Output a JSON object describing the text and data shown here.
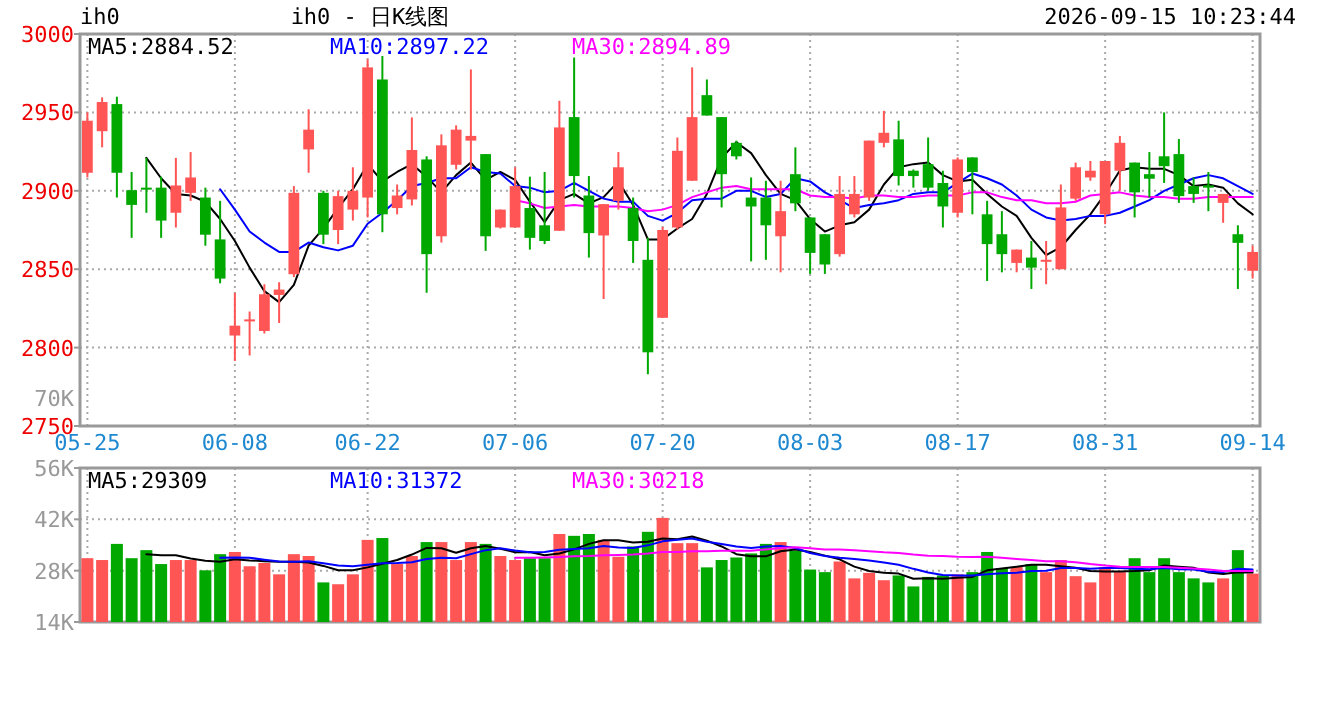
{
  "chart_data": [
    {
      "type": "candlestick",
      "title": "ih0 - 日K线图",
      "annotations": [
        "ih0",
        "2026-09-15 10:23:44",
        "70K"
      ],
      "categories": [
        "05-25",
        null,
        null,
        null,
        null,
        null,
        null,
        null,
        null,
        null,
        "06-08",
        null,
        null,
        null,
        null,
        null,
        null,
        null,
        null,
        "06-22",
        null,
        null,
        null,
        null,
        null,
        null,
        null,
        null,
        null,
        "07-06",
        null,
        null,
        null,
        null,
        null,
        null,
        null,
        null,
        null,
        "07-20",
        null,
        null,
        null,
        null,
        null,
        null,
        null,
        null,
        null,
        "08-03",
        null,
        null,
        null,
        null,
        null,
        null,
        null,
        null,
        null,
        "08-17",
        null,
        null,
        null,
        null,
        null,
        null,
        null,
        null,
        null,
        "08-31",
        null,
        null,
        null,
        null,
        null,
        null,
        null,
        null,
        null,
        "09-14"
      ],
      "ohlc": [
        [
          2911.5,
          2950,
          2908.5,
          2944.7
        ],
        [
          2938,
          2959.6,
          2927.7,
          2956.6
        ],
        [
          2955.3,
          2960,
          2895.7,
          2911.5
        ],
        [
          2900.4,
          2912,
          2870,
          2891
        ],
        [
          2902,
          2921,
          2886,
          2901
        ],
        [
          2902,
          2909,
          2870,
          2881
        ],
        [
          2886,
          2921,
          2876.6,
          2903.4
        ],
        [
          2898.7,
          2924.7,
          2893.6,
          2908.5
        ],
        [
          2895.7,
          2902,
          2865,
          2872
        ],
        [
          2869,
          2893.6,
          2841,
          2844
        ],
        [
          2807.7,
          2835,
          2791.5,
          2814
        ],
        [
          2817,
          2823,
          2795,
          2818
        ],
        [
          2810.6,
          2840.4,
          2809,
          2834
        ],
        [
          2833.6,
          2841.7,
          2815.7,
          2837
        ],
        [
          2846.8,
          2903,
          2845,
          2898.7
        ],
        [
          2926.4,
          2952,
          2911.5,
          2939
        ],
        [
          2898.7,
          2900,
          2866,
          2872
        ],
        [
          2875,
          2900,
          2866,
          2896.6
        ],
        [
          2888,
          2915,
          2881,
          2900
        ],
        [
          2895.7,
          2983.8,
          2883,
          2978.7
        ],
        [
          2971,
          2986,
          2873.6,
          2885
        ],
        [
          2889,
          2904,
          2885,
          2897
        ],
        [
          2894.5,
          2946.8,
          2890.6,
          2926
        ],
        [
          2920,
          2922,
          2835,
          2859.6
        ],
        [
          2871,
          2936,
          2867,
          2929
        ],
        [
          2916.6,
          2941.7,
          2913.6,
          2939
        ],
        [
          2932,
          2977.4,
          2913.6,
          2935
        ],
        [
          2923.4,
          2923.4,
          2861.7,
          2871
        ],
        [
          2876.6,
          2888.1,
          2876,
          2888
        ],
        [
          2876.6,
          2915,
          2876.6,
          2903
        ],
        [
          2889,
          2909,
          2862.5,
          2870
        ],
        [
          2878,
          2912,
          2866,
          2868
        ],
        [
          2874.5,
          2957.4,
          2874.5,
          2940.4
        ],
        [
          2947,
          2985,
          2895.7,
          2909.4
        ],
        [
          2897,
          2909.4,
          2857.4,
          2873
        ],
        [
          2871.5,
          2891.5,
          2831,
          2891.5
        ],
        [
          2893.6,
          2924.7,
          2888,
          2915
        ],
        [
          2889,
          2895.7,
          2854,
          2868
        ],
        [
          2856,
          2870,
          2783,
          2797
        ],
        [
          2819,
          2877,
          2819,
          2875
        ],
        [
          2876.6,
          2934,
          2875.3,
          2925.5
        ],
        [
          2906.4,
          2978.7,
          2906.4,
          2947
        ],
        [
          2961,
          2971,
          2948,
          2948
        ],
        [
          2947,
          2947,
          2889.4,
          2910.6
        ],
        [
          2930.6,
          2932,
          2920,
          2922
        ],
        [
          2895.7,
          2908.5,
          2855,
          2890
        ],
        [
          2895.7,
          2906.4,
          2856,
          2878
        ],
        [
          2871,
          2906.4,
          2848,
          2887
        ],
        [
          2910.6,
          2927.7,
          2887,
          2892
        ],
        [
          2883,
          2883,
          2847,
          2860.4
        ],
        [
          2872.3,
          2872.3,
          2847,
          2853
        ],
        [
          2859.6,
          2909.4,
          2858,
          2898
        ],
        [
          2885,
          2909.4,
          2883,
          2898
        ],
        [
          2895.7,
          2932,
          2893.6,
          2932
        ],
        [
          2930.6,
          2951,
          2927.7,
          2937
        ],
        [
          2932.8,
          2944.7,
          2903.4,
          2909.4
        ],
        [
          2912.8,
          2913.6,
          2902,
          2909.4
        ],
        [
          2917,
          2934,
          2900,
          2902
        ],
        [
          2905,
          2912.8,
          2876.6,
          2890
        ],
        [
          2886,
          2921.3,
          2883,
          2920
        ],
        [
          2921.3,
          2921.3,
          2885,
          2912
        ],
        [
          2885,
          2893.6,
          2842.5,
          2866
        ],
        [
          2872.3,
          2887,
          2848,
          2859.6
        ],
        [
          2854,
          2862.5,
          2848,
          2862.5
        ],
        [
          2857.4,
          2868,
          2837.4,
          2851
        ],
        [
          2855.3,
          2868,
          2840.4,
          2856
        ],
        [
          2850,
          2904,
          2850,
          2889.4
        ],
        [
          2895,
          2918,
          2893.6,
          2915
        ],
        [
          2908.5,
          2919,
          2906.4,
          2912.8
        ],
        [
          2885,
          2919,
          2878.7,
          2919
        ],
        [
          2912.8,
          2935,
          2900,
          2930.6
        ],
        [
          2918,
          2918,
          2883,
          2899
        ],
        [
          2910.6,
          2924.7,
          2895.7,
          2907.7
        ],
        [
          2922,
          2950,
          2905,
          2915.7
        ],
        [
          2923.4,
          2933,
          2892.3,
          2896.6
        ],
        [
          2903,
          2908.5,
          2892.3,
          2898
        ],
        [
          2903.4,
          2912,
          2887,
          2902
        ],
        [
          2892.3,
          2898,
          2879.6,
          2898
        ],
        [
          2872.3,
          2878,
          2837.4,
          2866.8
        ],
        [
          2849,
          2865,
          2844,
          2861
        ]
      ],
      "colors": [
        "#ff5555",
        "#ff5555",
        "#00a800",
        "#00a800",
        "#00a800",
        "#00a800",
        "#ff5555",
        "#ff5555",
        "#00a800",
        "#00a800",
        "#ff5555",
        "#ff5555",
        "#ff5555",
        "#ff5555",
        "#ff5555",
        "#ff5555",
        "#00a800",
        "#ff5555",
        "#ff5555",
        "#ff5555",
        "#00a800",
        "#ff5555",
        "#ff5555",
        "#00a800",
        "#ff5555",
        "#ff5555",
        "#ff5555",
        "#00a800",
        "#ff5555",
        "#ff5555",
        "#00a800",
        "#00a800",
        "#ff5555",
        "#00a800",
        "#00a800",
        "#ff5555",
        "#ff5555",
        "#00a800",
        "#00a800",
        "#ff5555",
        "#ff5555",
        "#ff5555",
        "#00a800",
        "#00a800",
        "#00a800",
        "#00a800",
        "#00a800",
        "#ff5555",
        "#00a800",
        "#00a800",
        "#00a800",
        "#ff5555",
        "#ff5555",
        "#ff5555",
        "#ff5555",
        "#00a800",
        "#00a800",
        "#00a800",
        "#00a800",
        "#ff5555",
        "#00a800",
        "#00a800",
        "#00a800",
        "#ff5555",
        "#00a800",
        "#ff5555",
        "#ff5555",
        "#ff5555",
        "#ff5555",
        "#ff5555",
        "#ff5555",
        "#00a800",
        "#00a800",
        "#00a800",
        "#00a800",
        "#00a800",
        "#00a800",
        "#ff5555",
        "#00a800",
        "#ff5555"
      ],
      "series": [
        {
          "name": "MA5:2884.52",
          "type": "line",
          "color": "#000000",
          "values": [
            null,
            null,
            null,
            null,
            2921,
            2908,
            2898,
            2897,
            2893,
            2882,
            2868,
            2851,
            2836,
            2829,
            2840,
            2865,
            2876,
            2889,
            2901,
            2917,
            2906,
            2912,
            2917,
            2909,
            2899,
            2910,
            2918,
            2907,
            2912,
            2907,
            2893,
            2880,
            2894,
            2898,
            2892,
            2896,
            2906,
            2891,
            2869,
            2869,
            2876,
            2882,
            2898,
            2921,
            2931,
            2924,
            2910,
            2898,
            2894,
            2882,
            2874,
            2878,
            2880,
            2888,
            2904,
            2915,
            2917,
            2918,
            2910,
            2906,
            2907,
            2898,
            2890,
            2884,
            2870,
            2859,
            2864,
            2875,
            2885,
            2898,
            2913,
            2915,
            2914,
            2914,
            2910,
            2903,
            2904,
            2902,
            2892,
            2885
          ]
        },
        {
          "name": "MA10:2897.22",
          "type": "line",
          "color": "#0000ff",
          "values": [
            null,
            null,
            null,
            null,
            null,
            null,
            null,
            null,
            null,
            2901,
            2888,
            2874,
            2867,
            2861,
            2861,
            2867,
            2864,
            2862,
            2865,
            2879,
            2886,
            2894,
            2903,
            2905,
            2908,
            2908,
            2915,
            2912,
            2911,
            2903,
            2902,
            2899,
            2900,
            2905,
            2900,
            2895,
            2893,
            2893,
            2884,
            2881,
            2886,
            2894,
            2895,
            2895,
            2900,
            2900,
            2896,
            2898,
            2908,
            2906,
            2899,
            2894,
            2889,
            2891,
            2892,
            2894,
            2898,
            2899,
            2899,
            2905,
            2911,
            2908,
            2904,
            2897,
            2888,
            2883,
            2881,
            2882,
            2884,
            2884,
            2886,
            2890,
            2894,
            2900,
            2904,
            2908,
            2910,
            2908,
            2903,
            2898
          ]
        },
        {
          "name": "MA30:2894.89",
          "type": "line",
          "color": "#ff00ff",
          "values": [
            null,
            null,
            null,
            null,
            null,
            null,
            null,
            null,
            null,
            null,
            null,
            null,
            null,
            null,
            null,
            null,
            null,
            null,
            null,
            null,
            null,
            null,
            null,
            null,
            null,
            null,
            null,
            null,
            null,
            2894,
            2892,
            2889,
            2890,
            2891,
            2890,
            2890,
            2890,
            2889,
            2887,
            2888,
            2891,
            2896,
            2899,
            2902,
            2903,
            2901,
            2901,
            2901,
            2901,
            2897,
            2896,
            2896,
            2895,
            2897,
            2897,
            2896,
            2896,
            2897,
            2897,
            2897,
            2899,
            2899,
            2896,
            2894,
            2894,
            2892,
            2892,
            2893,
            2897,
            2898,
            2899,
            2897,
            2896,
            2896,
            2895,
            2895,
            2896,
            2896,
            2896,
            2896
          ]
        }
      ],
      "ylim": [
        2750,
        3000
      ],
      "yticks": [
        2750,
        2800,
        2850,
        2900,
        2950,
        3000
      ],
      "grid": true,
      "legend": "top left"
    },
    {
      "type": "bar",
      "categories": [
        null,
        null,
        null,
        null,
        null,
        null,
        null,
        null,
        null,
        null,
        null,
        null,
        null,
        null,
        null,
        null,
        null,
        null,
        null,
        null,
        null,
        null,
        null,
        null,
        null,
        null,
        null,
        null,
        null,
        null,
        null,
        null,
        null,
        null,
        null,
        null,
        null,
        null,
        null,
        null,
        null,
        null,
        null,
        null,
        null,
        null,
        null,
        null,
        null,
        null,
        null,
        null,
        null,
        null,
        null,
        null,
        null,
        null,
        null,
        null,
        null,
        null,
        null,
        null,
        null,
        null,
        null,
        null,
        null,
        null,
        null,
        null,
        null,
        null,
        null,
        null,
        null,
        null,
        null,
        null
      ],
      "series": [
        {
          "type": "bar",
          "values": [
            31400,
            30900,
            35300,
            31400,
            33600,
            29800,
            30900,
            30900,
            28100,
            32500,
            33100,
            29200,
            30100,
            27000,
            32500,
            32000,
            24800,
            24300,
            27000,
            36400,
            36900,
            29800,
            32000,
            35800,
            35800,
            30900,
            35800,
            35300,
            32000,
            30900,
            31400,
            31400,
            38000,
            37500,
            38000,
            36400,
            31800,
            34600,
            38600,
            42400,
            35500,
            35500,
            28900,
            30900,
            31600,
            32700,
            35300,
            35800,
            33400,
            28300,
            27600,
            30500,
            25900,
            27400,
            25400,
            26700,
            23700,
            26300,
            26700,
            27000,
            27600,
            33100,
            28700,
            29000,
            29800,
            27600,
            30900,
            26500,
            24800,
            29000,
            27600,
            31400,
            27600,
            31400,
            27600,
            25900,
            24800,
            25900,
            33600,
            27200
          ],
          "colors": [
            "#ff5555",
            "#ff5555",
            "#00a800",
            "#00a800",
            "#00a800",
            "#00a800",
            "#ff5555",
            "#ff5555",
            "#00a800",
            "#00a800",
            "#ff5555",
            "#ff5555",
            "#ff5555",
            "#ff5555",
            "#ff5555",
            "#ff5555",
            "#00a800",
            "#ff5555",
            "#ff5555",
            "#ff5555",
            "#00a800",
            "#ff5555",
            "#ff5555",
            "#00a800",
            "#ff5555",
            "#ff5555",
            "#ff5555",
            "#00a800",
            "#ff5555",
            "#ff5555",
            "#00a800",
            "#00a800",
            "#ff5555",
            "#00a800",
            "#00a800",
            "#ff5555",
            "#ff5555",
            "#00a800",
            "#00a800",
            "#ff5555",
            "#ff5555",
            "#ff5555",
            "#00a800",
            "#00a800",
            "#00a800",
            "#00a800",
            "#00a800",
            "#ff5555",
            "#00a800",
            "#00a800",
            "#00a800",
            "#ff5555",
            "#ff5555",
            "#ff5555",
            "#ff5555",
            "#00a800",
            "#00a800",
            "#00a800",
            "#00a800",
            "#ff5555",
            "#00a800",
            "#00a800",
            "#00a800",
            "#ff5555",
            "#00a800",
            "#ff5555",
            "#ff5555",
            "#ff5555",
            "#ff5555",
            "#ff5555",
            "#ff5555",
            "#00a800",
            "#00a800",
            "#00a800",
            "#00a800",
            "#00a800",
            "#00a800",
            "#ff5555",
            "#00a800",
            "#ff5555"
          ]
        },
        {
          "name": "MA5:29309",
          "type": "line",
          "color": "#000000",
          "values": [
            null,
            null,
            null,
            null,
            32500,
            32200,
            32200,
            31300,
            30700,
            30400,
            31100,
            30800,
            30600,
            30400,
            30400,
            30200,
            29300,
            28100,
            28100,
            28900,
            29900,
            30900,
            32400,
            34200,
            34100,
            32900,
            34100,
            34700,
            34000,
            33000,
            33100,
            32200,
            32700,
            33800,
            35300,
            36300,
            36300,
            35700,
            35900,
            36800,
            36600,
            37300,
            36200,
            34600,
            32500,
            31900,
            31900,
            33300,
            33800,
            33100,
            32100,
            31100,
            29100,
            27900,
            27400,
            27200,
            25800,
            25900,
            25800,
            26100,
            26300,
            28100,
            28600,
            29100,
            29600,
            29600,
            29200,
            28800,
            27900,
            27800,
            27800,
            27900,
            28100,
            29400,
            29100,
            28800,
            27500,
            27100,
            27600,
            27500
          ]
        },
        {
          "name": "MA10:31372",
          "type": "line",
          "color": "#0000ff",
          "values": [
            null,
            null,
            null,
            null,
            null,
            null,
            null,
            null,
            null,
            31500,
            31600,
            31500,
            31000,
            30500,
            30400,
            30600,
            30000,
            29400,
            29200,
            29600,
            30000,
            30100,
            30300,
            31200,
            31500,
            31400,
            32500,
            33600,
            34100,
            33500,
            33000,
            33100,
            33700,
            33900,
            34100,
            34700,
            34300,
            34200,
            34900,
            36000,
            36400,
            36800,
            35900,
            35300,
            34600,
            34200,
            34600,
            34700,
            34200,
            32800,
            32000,
            31500,
            31200,
            30800,
            30200,
            29600,
            28500,
            27500,
            26800,
            26700,
            26700,
            27000,
            27300,
            27400,
            27900,
            28000,
            28700,
            28700,
            28500,
            28700,
            28700,
            28500,
            28400,
            28700,
            28400,
            28300,
            27700,
            27600,
            28500,
            28300
          ]
        },
        {
          "name": "MA30:30218",
          "type": "line",
          "color": "#ff00ff",
          "values": [
            null,
            null,
            null,
            null,
            null,
            null,
            null,
            null,
            null,
            null,
            null,
            null,
            null,
            null,
            null,
            null,
            null,
            null,
            null,
            null,
            null,
            null,
            null,
            null,
            null,
            null,
            null,
            null,
            null,
            31500,
            31500,
            31600,
            31700,
            31900,
            32000,
            32200,
            32300,
            32400,
            32700,
            33100,
            33100,
            33300,
            33300,
            33400,
            33400,
            33400,
            33800,
            34200,
            34400,
            34100,
            33800,
            33800,
            33600,
            33300,
            33000,
            32800,
            32400,
            32100,
            32000,
            31800,
            31700,
            31800,
            31500,
            31200,
            30900,
            30600,
            30600,
            30300,
            29800,
            29400,
            29100,
            29000,
            29000,
            29000,
            28800,
            28600,
            28300,
            27900,
            27900,
            27900
          ]
        }
      ],
      "ylim": [
        14000,
        56000
      ],
      "yticks": [
        {
          "value": 14000,
          "label": "14K"
        },
        {
          "value": 28000,
          "label": "28K"
        },
        {
          "value": 42000,
          "label": "42K"
        },
        {
          "value": 56000,
          "label": "56K"
        }
      ],
      "tick_labels": "y",
      "grid": true,
      "legend": "top left"
    }
  ]
}
